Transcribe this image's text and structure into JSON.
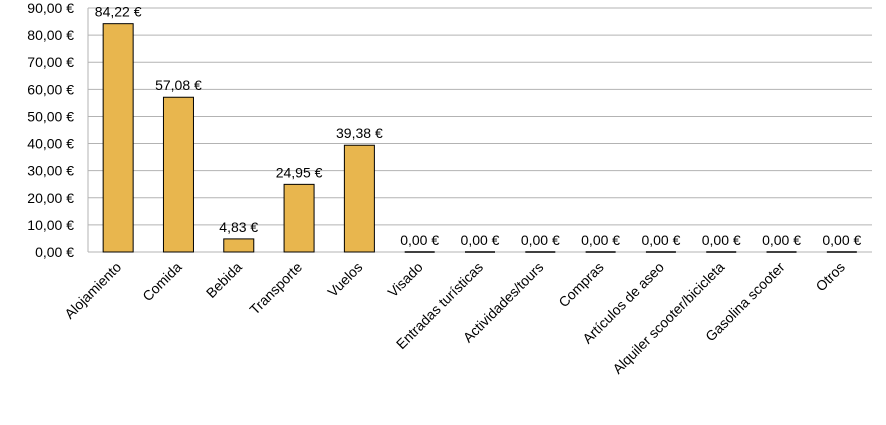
{
  "colors": {
    "bar_fill": "#e8b64e",
    "bar_stroke": "#000000",
    "grid": "#b3b3b3"
  },
  "chart_data": {
    "type": "bar",
    "title": "",
    "xlabel": "",
    "ylabel": "",
    "ylim": [
      0,
      90
    ],
    "ytick_step": 10,
    "yticks": [
      "0,00 €",
      "10,00 €",
      "20,00 €",
      "30,00 €",
      "40,00 €",
      "50,00 €",
      "60,00 €",
      "70,00 €",
      "80,00 €",
      "90,00 €"
    ],
    "grid": true,
    "categories": [
      "Alojamiento",
      "Comida",
      "Bebida",
      "Transporte",
      "Vuelos",
      "Visado",
      "Entradas turísticas",
      "Actividades/tours",
      "Compras",
      "Artículos de aseo",
      "Alquiler scooter/bicicleta",
      "Gasolina scooter",
      "Otros"
    ],
    "values": [
      84.22,
      57.08,
      4.83,
      24.95,
      39.38,
      0,
      0,
      0,
      0,
      0,
      0,
      0,
      0
    ],
    "data_labels": [
      "84,22 €",
      "57,08 €",
      "4,83 €",
      "24,95 €",
      "39,38 €",
      "0,00 €",
      "0,00 €",
      "0,00 €",
      "0,00 €",
      "0,00 €",
      "0,00 €",
      "0,00 €",
      "0,00 €"
    ]
  }
}
